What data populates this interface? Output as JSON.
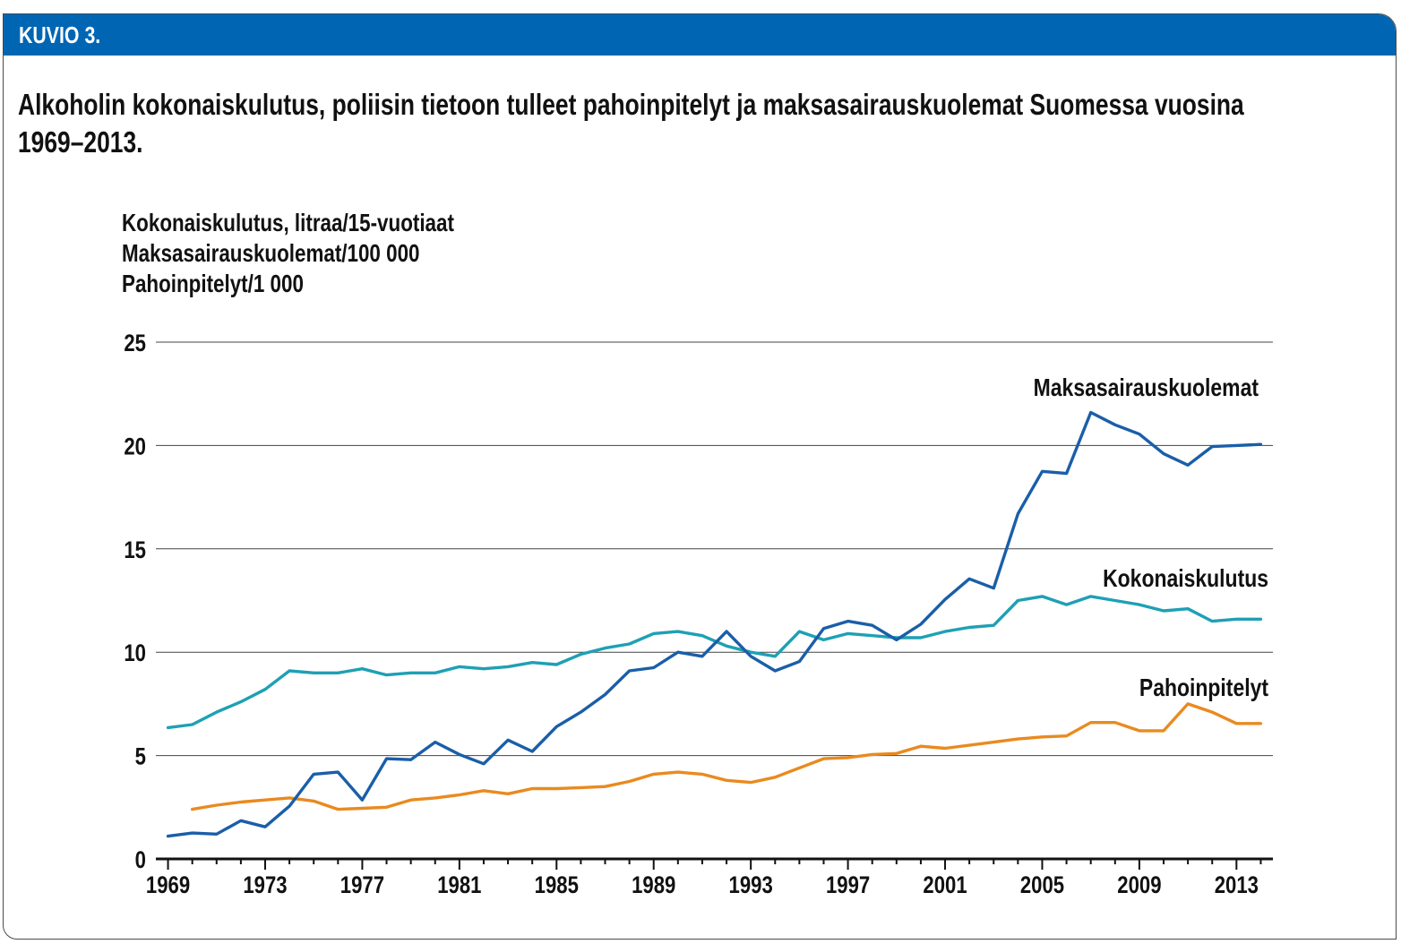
{
  "header": {
    "label": "KUVIO 3."
  },
  "title": "Alkoholin kokonaiskulutus, poliisin tietoon tulleet pahoinpitelyt ja maksasairauskuolemat Suomessa vuosina 1969–2013.",
  "units": [
    "Kokonaiskulutus, litraa/15-vuotiaat",
    "Maksasairauskuolemat/100 000",
    "Pahoinpitelyt/1 000"
  ],
  "chart_data": {
    "type": "line",
    "title": "Alkoholin kokonaiskulutus, poliisin tietoon tulleet pahoinpitelyt ja maksasairauskuolemat Suomessa vuosina 1969–2013.",
    "ylabel": "Kokonaiskulutus, litraa/15-vuotiaat; Maksasairauskuolemat/100 000; Pahoinpitelyt/1 000",
    "xlabel": "",
    "xlim": [
      1968.5,
      2014.5
    ],
    "ylim": [
      0,
      25
    ],
    "yticks": [
      0,
      5,
      10,
      15,
      20,
      25
    ],
    "xticks": [
      "1969",
      "1973",
      "1977",
      "1981",
      "1985",
      "1989",
      "1993",
      "1997",
      "2001",
      "2005",
      "2009",
      "2013"
    ],
    "grid": true,
    "legend": "inline-labels",
    "series": [
      {
        "name": "Maksasairauskuolemat",
        "color": "#1a5ea8",
        "x": [
          1969,
          1970,
          1971,
          1972,
          1973,
          1974,
          1975,
          1976,
          1977,
          1978,
          1979,
          1980,
          1981,
          1982,
          1983,
          1984,
          1985,
          1986,
          1987,
          1988,
          1989,
          1990,
          1991,
          1992,
          1993,
          1994,
          1995,
          1996,
          1997,
          1998,
          1999,
          2000,
          2001,
          2002,
          2003,
          2004,
          2005,
          2006,
          2007,
          2008,
          2009,
          2010,
          2011,
          2012,
          2013,
          2014
        ],
        "values": [
          1.1,
          1.25,
          1.2,
          1.85,
          1.55,
          2.55,
          4.1,
          4.2,
          2.85,
          4.85,
          4.8,
          5.65,
          5.05,
          4.6,
          5.75,
          5.2,
          6.4,
          7.1,
          7.95,
          9.1,
          9.25,
          10.0,
          9.8,
          11.0,
          9.8,
          9.1,
          9.55,
          11.15,
          11.5,
          11.3,
          10.6,
          11.35,
          12.55,
          13.55,
          13.1,
          16.7,
          18.75,
          18.65,
          21.6,
          21.0,
          20.55,
          19.6,
          19.05,
          19.95,
          20.0,
          20.05
        ]
      },
      {
        "name": "Kokonaiskulutus",
        "color": "#1ea0b4",
        "x": [
          1969,
          1970,
          1971,
          1972,
          1973,
          1974,
          1975,
          1976,
          1977,
          1978,
          1979,
          1980,
          1981,
          1982,
          1983,
          1984,
          1985,
          1986,
          1987,
          1988,
          1989,
          1990,
          1991,
          1992,
          1993,
          1994,
          1995,
          1996,
          1997,
          1998,
          1999,
          2000,
          2001,
          2002,
          2003,
          2004,
          2005,
          2006,
          2007,
          2008,
          2009,
          2010,
          2011,
          2012,
          2013,
          2014
        ],
        "values": [
          6.35,
          6.5,
          7.1,
          7.6,
          8.2,
          9.1,
          9.0,
          9.0,
          9.2,
          8.9,
          9.0,
          9.0,
          9.3,
          9.2,
          9.3,
          9.5,
          9.4,
          9.9,
          10.2,
          10.4,
          10.9,
          11.0,
          10.8,
          10.3,
          10.0,
          9.8,
          11.0,
          10.6,
          10.9,
          10.8,
          10.7,
          10.7,
          11.0,
          11.2,
          11.3,
          12.5,
          12.7,
          12.3,
          12.7,
          12.5,
          12.3,
          12.0,
          12.1,
          11.5,
          11.6,
          11.6
        ]
      },
      {
        "name": "Pahoinpitelyt",
        "color": "#e98a1f",
        "x": [
          1970,
          1971,
          1972,
          1973,
          1974,
          1975,
          1976,
          1977,
          1978,
          1979,
          1980,
          1981,
          1982,
          1983,
          1984,
          1985,
          1986,
          1987,
          1988,
          1989,
          1990,
          1991,
          1992,
          1993,
          1994,
          1995,
          1996,
          1997,
          1998,
          1999,
          2000,
          2001,
          2002,
          2003,
          2004,
          2005,
          2006,
          2007,
          2008,
          2009,
          2010,
          2011,
          2012,
          2013,
          2014
        ],
        "values": [
          2.4,
          2.6,
          2.75,
          2.85,
          2.95,
          2.8,
          2.4,
          2.45,
          2.5,
          2.85,
          2.95,
          3.1,
          3.3,
          3.15,
          3.4,
          3.4,
          3.45,
          3.5,
          3.75,
          4.1,
          4.2,
          4.1,
          3.8,
          3.7,
          3.95,
          4.4,
          4.85,
          4.9,
          5.05,
          5.1,
          5.45,
          5.35,
          5.5,
          5.65,
          5.8,
          5.9,
          5.95,
          6.6,
          6.6,
          6.2,
          6.2,
          7.5,
          7.1,
          6.55,
          6.55
        ]
      }
    ]
  }
}
